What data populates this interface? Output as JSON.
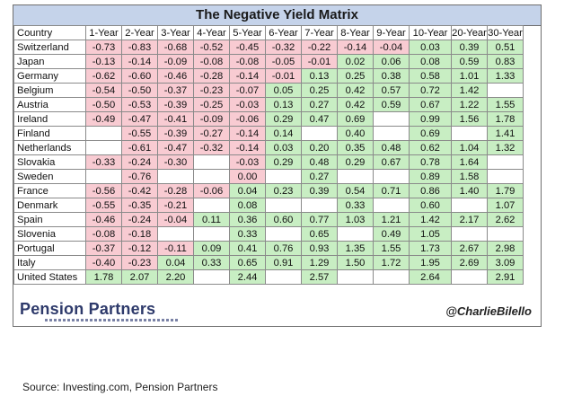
{
  "title": "The Negative Yield Matrix",
  "header": {
    "country": "Country",
    "columns": [
      "1-Year",
      "2-Year",
      "3-Year",
      "4-Year",
      "5-Year",
      "6-Year",
      "7-Year",
      "8-Year",
      "9-Year",
      "10-Year",
      "20-Year",
      "30-Year"
    ]
  },
  "chart_data": {
    "type": "table",
    "title": "The Negative Yield Matrix",
    "columns": [
      "1-Year",
      "2-Year",
      "3-Year",
      "4-Year",
      "5-Year",
      "6-Year",
      "7-Year",
      "8-Year",
      "9-Year",
      "10-Year",
      "20-Year",
      "30-Year"
    ],
    "rows": [
      {
        "country": "Switzerland",
        "values": [
          "-0.73",
          "-0.83",
          "-0.68",
          "-0.52",
          "-0.45",
          "-0.32",
          "-0.22",
          "-0.14",
          "-0.04",
          "0.03",
          "0.39",
          "0.51"
        ]
      },
      {
        "country": "Japan",
        "values": [
          "-0.13",
          "-0.14",
          "-0.09",
          "-0.08",
          "-0.08",
          "-0.05",
          "-0.01",
          "0.02",
          "0.06",
          "0.08",
          "0.59",
          "0.83"
        ]
      },
      {
        "country": "Germany",
        "values": [
          "-0.62",
          "-0.60",
          "-0.46",
          "-0.28",
          "-0.14",
          "-0.01",
          "0.13",
          "0.25",
          "0.38",
          "0.58",
          "1.01",
          "1.33"
        ]
      },
      {
        "country": "Belgium",
        "values": [
          "-0.54",
          "-0.50",
          "-0.37",
          "-0.23",
          "-0.07",
          "0.05",
          "0.25",
          "0.42",
          "0.57",
          "0.72",
          "1.42",
          ""
        ]
      },
      {
        "country": "Austria",
        "values": [
          "-0.50",
          "-0.53",
          "-0.39",
          "-0.25",
          "-0.03",
          "0.13",
          "0.27",
          "0.42",
          "0.59",
          "0.67",
          "1.22",
          "1.55"
        ]
      },
      {
        "country": "Ireland",
        "values": [
          "-0.49",
          "-0.47",
          "-0.41",
          "-0.09",
          "-0.06",
          "0.29",
          "0.47",
          "0.69",
          "",
          "0.99",
          "1.56",
          "1.78"
        ]
      },
      {
        "country": "Finland",
        "values": [
          "",
          "-0.55",
          "-0.39",
          "-0.27",
          "-0.14",
          "0.14",
          "",
          "0.40",
          "",
          "0.69",
          "",
          "1.41"
        ]
      },
      {
        "country": "Netherlands",
        "values": [
          "",
          "-0.61",
          "-0.47",
          "-0.32",
          "-0.14",
          "0.03",
          "0.20",
          "0.35",
          "0.48",
          "0.62",
          "1.04",
          "1.32"
        ]
      },
      {
        "country": "Slovakia",
        "values": [
          "-0.33",
          "-0.24",
          "-0.30",
          "",
          "-0.03",
          "0.29",
          "0.48",
          "0.29",
          "0.67",
          "0.78",
          "1.64",
          ""
        ]
      },
      {
        "country": "Sweden",
        "values": [
          "",
          "-0.76",
          "",
          "",
          "0.00",
          "",
          "0.27",
          "",
          "",
          "0.89",
          "1.58",
          ""
        ]
      },
      {
        "country": "France",
        "values": [
          "-0.56",
          "-0.42",
          "-0.28",
          "-0.06",
          "0.04",
          "0.23",
          "0.39",
          "0.54",
          "0.71",
          "0.86",
          "1.40",
          "1.79"
        ]
      },
      {
        "country": "Denmark",
        "values": [
          "-0.55",
          "-0.35",
          "-0.21",
          "",
          "0.08",
          "",
          "",
          "0.33",
          "",
          "0.60",
          "",
          "1.07"
        ]
      },
      {
        "country": "Spain",
        "values": [
          "-0.46",
          "-0.24",
          "-0.04",
          "0.11",
          "0.36",
          "0.60",
          "0.77",
          "1.03",
          "1.21",
          "1.42",
          "2.17",
          "2.62"
        ]
      },
      {
        "country": "Slovenia",
        "values": [
          "-0.08",
          "-0.18",
          "",
          "",
          "0.33",
          "",
          "0.65",
          "",
          "0.49",
          "1.05",
          "",
          ""
        ]
      },
      {
        "country": "Portugal",
        "values": [
          "-0.37",
          "-0.12",
          "-0.11",
          "0.09",
          "0.41",
          "0.76",
          "0.93",
          "1.35",
          "1.55",
          "1.73",
          "2.67",
          "2.98"
        ]
      },
      {
        "country": "Italy",
        "values": [
          "-0.40",
          "-0.23",
          "0.04",
          "0.33",
          "0.65",
          "0.91",
          "1.29",
          "1.50",
          "1.72",
          "1.95",
          "2.69",
          "3.09"
        ]
      },
      {
        "country": "United States",
        "values": [
          "1.78",
          "2.07",
          "2.20",
          "",
          "2.44",
          "",
          "2.57",
          "",
          "",
          "2.64",
          "",
          "2.91"
        ]
      }
    ],
    "colors": {
      "negative": "#f8cbd2",
      "positive": "#c8eec3"
    }
  },
  "footer": {
    "logo": "Pension Partners",
    "handle": "@CharlieBilello"
  },
  "source": "Source: Investing.com, Pension Partners"
}
